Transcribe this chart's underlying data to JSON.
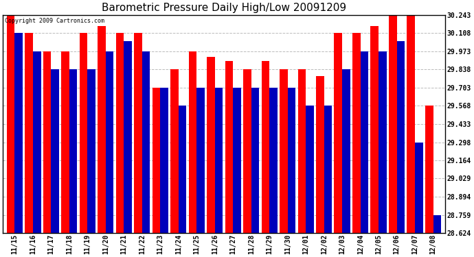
{
  "title": "Barometric Pressure Daily High/Low 20091209",
  "copyright": "Copyright 2009 Cartronics.com",
  "background_color": "#ffffff",
  "bar_color_high": "#ff0000",
  "bar_color_low": "#0000bb",
  "grid_color": "#bbbbbb",
  "y_ticks": [
    28.624,
    28.759,
    28.894,
    29.029,
    29.164,
    29.298,
    29.433,
    29.568,
    29.703,
    29.838,
    29.973,
    30.108,
    30.243
  ],
  "ylim_low": 28.624,
  "ylim_high": 30.243,
  "dates": [
    "11/15",
    "11/16",
    "11/17",
    "11/18",
    "11/19",
    "11/20",
    "11/21",
    "11/22",
    "11/23",
    "11/24",
    "11/25",
    "11/26",
    "11/27",
    "11/28",
    "11/29",
    "11/30",
    "12/01",
    "12/02",
    "12/03",
    "12/04",
    "12/05",
    "12/06",
    "12/07",
    "12/08"
  ],
  "highs": [
    30.243,
    30.108,
    29.973,
    29.973,
    30.108,
    30.16,
    30.108,
    30.108,
    29.703,
    29.838,
    29.973,
    29.93,
    29.9,
    29.838,
    29.9,
    29.838,
    29.838,
    29.79,
    30.108,
    30.108,
    30.16,
    30.243,
    30.243,
    29.568
  ],
  "lows": [
    30.108,
    29.973,
    29.838,
    29.838,
    29.838,
    29.973,
    30.05,
    29.973,
    29.703,
    29.568,
    29.703,
    29.703,
    29.703,
    29.703,
    29.703,
    29.703,
    29.568,
    29.568,
    29.838,
    29.973,
    29.973,
    30.05,
    29.298,
    28.759
  ],
  "title_fontsize": 11,
  "tick_fontsize": 7,
  "figwidth": 6.9,
  "figheight": 3.75,
  "dpi": 100
}
